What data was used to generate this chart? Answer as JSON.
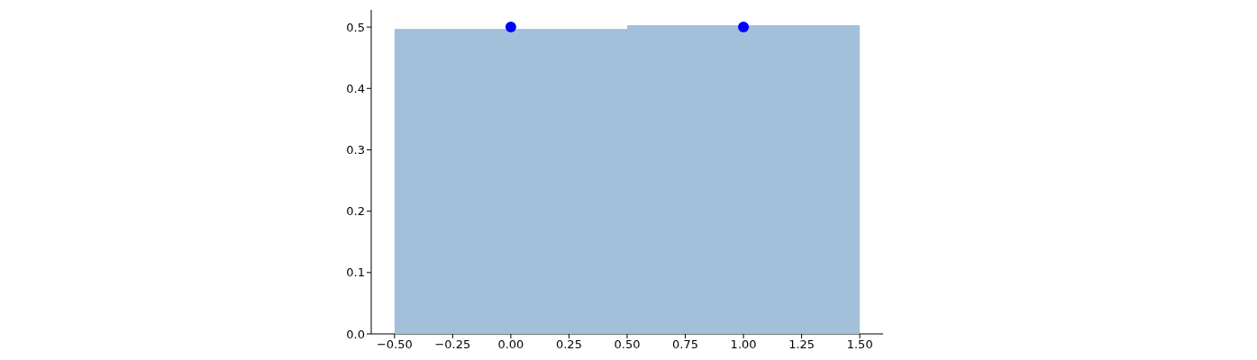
{
  "chart_data": {
    "type": "histogram",
    "bins": [
      -0.5,
      0.5,
      1.5
    ],
    "values": [
      0.497,
      0.503
    ],
    "color": "#a3bfda",
    "series": [
      {
        "type": "scatter",
        "x": [
          0,
          1
        ],
        "values": [
          0.5,
          0.5
        ],
        "color": "#0000ff"
      }
    ],
    "marker": "circle",
    "xlim": [
      -0.6,
      1.6
    ],
    "xticks": [
      {
        "value": -0.5,
        "label": "−0.50"
      },
      {
        "value": -0.25,
        "label": "−0.25"
      },
      {
        "value": 0,
        "label": "0.00"
      },
      {
        "value": 0.25,
        "label": "0.25"
      },
      {
        "value": 0.5,
        "label": "0.50"
      },
      {
        "value": 0.75,
        "label": "0.75"
      },
      {
        "value": 1,
        "label": "1.00"
      },
      {
        "value": 1.25,
        "label": "1.25"
      },
      {
        "value": 1.5,
        "label": "1.50"
      }
    ],
    "ylim": [
      0,
      0.528
    ],
    "yticks": [
      {
        "value": 0,
        "label": "0.0"
      },
      {
        "value": 0.1,
        "label": "0.1"
      },
      {
        "value": 0.2,
        "label": "0.2"
      },
      {
        "value": 0.3,
        "label": "0.3"
      },
      {
        "value": 0.4,
        "label": "0.4"
      },
      {
        "value": 0.5,
        "label": "0.5"
      }
    ],
    "grid": false
  }
}
